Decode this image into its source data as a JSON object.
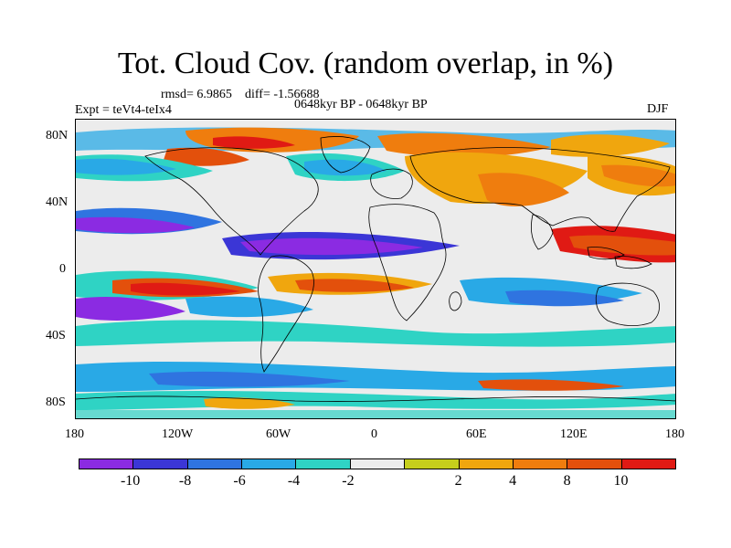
{
  "title": "Tot. Cloud Cov. (random overlap, in %)",
  "stats": {
    "rmsd": "rmsd= 6.9865",
    "diff": "diff= -1.56688"
  },
  "left_label": "Expt = teVt4-teIx4",
  "center_label": "0648kyr BP - 0648kyr BP",
  "right_label": "DJF",
  "lat_labels": [
    "80N",
    "40N",
    "0",
    "40S",
    "80S"
  ],
  "lon_labels": [
    "180",
    "120W",
    "60W",
    "0",
    "60E",
    "120E",
    "180"
  ],
  "colorbar": {
    "colors": [
      "#8b2be2",
      "#3b36d6",
      "#2f74e0",
      "#29a9e6",
      "#2fd3c4",
      "#ececec",
      "#c6cf1c",
      "#f0a60e",
      "#ef7d0e",
      "#e3500c",
      "#e01a14"
    ],
    "labels": [
      "-10",
      "-8",
      "-6",
      "-4",
      "-2",
      "2",
      "4",
      "8",
      "10"
    ]
  }
}
